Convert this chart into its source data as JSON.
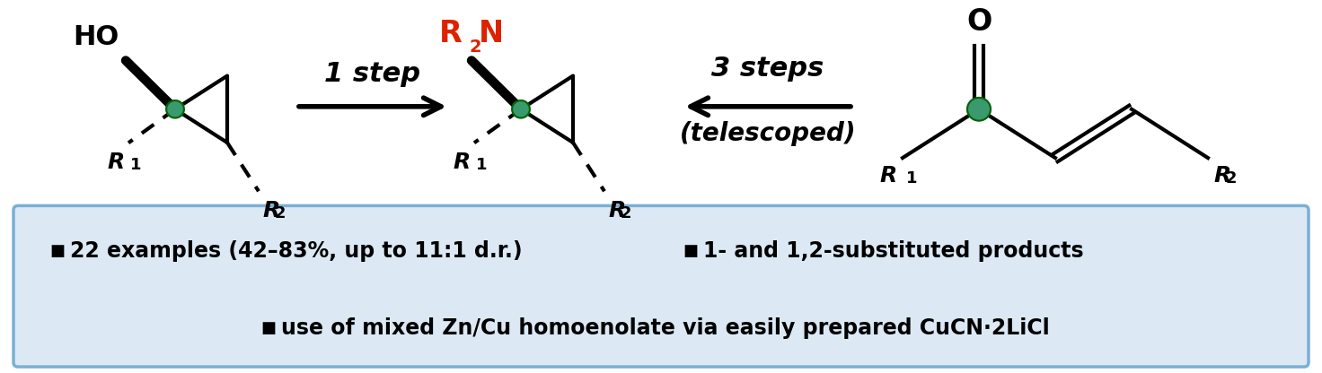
{
  "bg_color": "#ffffff",
  "box_bg_color": "#dce9f5",
  "box_edge_color": "#7ab0d4",
  "green_color": "#3a9a6e",
  "red_color": "#dd2200",
  "black_color": "#000000",
  "bullet1": "22 examples (42–83%, up to 11:1 d.r.)",
  "bullet2": "1- and 1,2-substituted products",
  "bullet3": "use of mixed Zn/Cu homoenolate via easily prepared CuCN·2LiCl",
  "arrow1_label": "1 step",
  "arrow2_label_line1": "3 steps",
  "arrow2_label_line2": "(telescoped)"
}
